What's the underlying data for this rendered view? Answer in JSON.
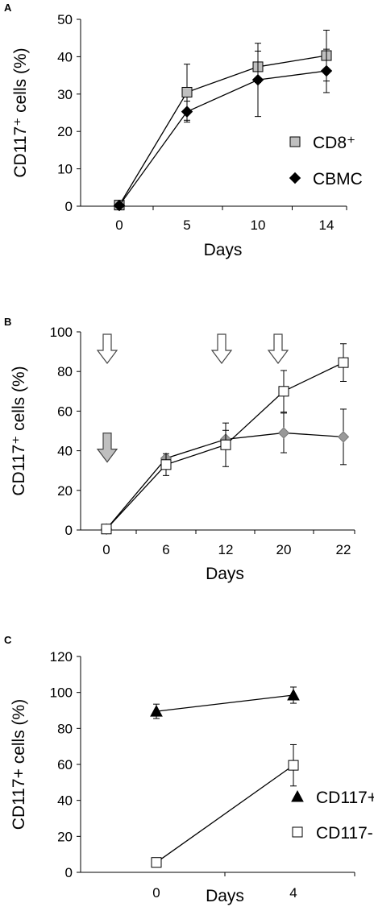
{
  "chart_data": [
    {
      "panel": "A",
      "type": "line",
      "ylabel": "CD117⁺ cells (%)",
      "xlabel": "Days",
      "categories": [
        "0",
        "5",
        "10",
        "14"
      ],
      "ylim": [
        0,
        50
      ],
      "yticks": [
        "0",
        "10",
        "20",
        "30",
        "40",
        "50"
      ],
      "legend": "right",
      "series": [
        {
          "name": "CD8⁺",
          "marker": "square",
          "fill": "#bfbfbf",
          "values": [
            0.3,
            30.5,
            37.3,
            40.3
          ],
          "errors": [
            null,
            7.5,
            4.2,
            6.8
          ]
        },
        {
          "name": "CBMC",
          "marker": "diamond",
          "fill": "#000000",
          "values": [
            0.2,
            25.3,
            33.8,
            36.2
          ],
          "errors": [
            null,
            2.8,
            9.8,
            5.8
          ]
        }
      ]
    },
    {
      "panel": "B",
      "type": "line",
      "ylabel": "CD117⁺ cells (%)",
      "xlabel": "Days",
      "categories": [
        "0",
        "6",
        "12",
        "20",
        "22"
      ],
      "ylim": [
        0,
        100
      ],
      "yticks": [
        "0",
        "20",
        "40",
        "60",
        "80",
        "100"
      ],
      "series": [
        {
          "name": "",
          "marker": "diamond",
          "fill": "#999999",
          "values": [
            0.5,
            36.2,
            45.8,
            49.0,
            47.0
          ],
          "errors": [
            null,
            null,
            4.5,
            10.0,
            14.0
          ]
        },
        {
          "name": "",
          "marker": "square",
          "fill": "#ffffff",
          "values": [
            0.5,
            33.0,
            43.0,
            70.0,
            84.5
          ],
          "errors": [
            null,
            5.5,
            11.0,
            10.5,
            9.5
          ]
        }
      ],
      "annotations": [
        {
          "type": "arrow",
          "fill": "#ffffff",
          "category": "0",
          "level": 90
        },
        {
          "type": "arrow",
          "fill": "#bfbfbf",
          "category": "0",
          "level": 40
        },
        {
          "type": "arrow",
          "fill": "#ffffff",
          "category": "12",
          "level": 90
        },
        {
          "type": "arrow",
          "fill": "#ffffff",
          "category": "20",
          "level": 90
        }
      ]
    },
    {
      "panel": "C",
      "type": "line",
      "ylabel": "CD117+ cells (%)",
      "xlabel": "Days",
      "categories": [
        "0",
        "4"
      ],
      "ylim": [
        0,
        120
      ],
      "yticks": [
        "0",
        "20",
        "40",
        "60",
        "80",
        "100",
        "120"
      ],
      "legend": "right",
      "series": [
        {
          "name": "CD117+",
          "marker": "triangle",
          "fill": "#000000",
          "values": [
            89.5,
            98.5
          ],
          "errors": [
            4.0,
            4.5
          ]
        },
        {
          "name": "CD117-",
          "marker": "square",
          "fill": "#ffffff",
          "values": [
            5.5,
            59.5
          ],
          "errors": [
            null,
            11.5
          ]
        }
      ]
    }
  ]
}
